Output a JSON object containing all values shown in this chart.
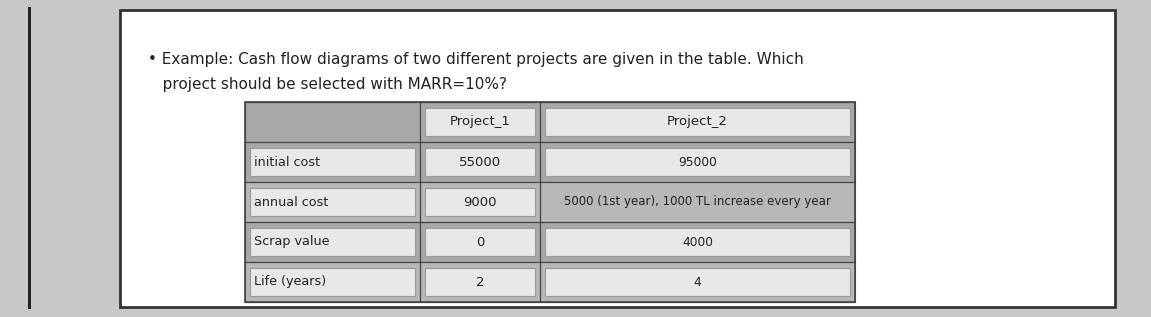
{
  "bg_color": "#c8c8c8",
  "outer_box_facecolor": "#ffffff",
  "outer_box_edgecolor": "#333333",
  "text_line1": "• Example: Cash flow diagrams of two different projects are given in the table. Which",
  "text_line2": "   project should be selected with MARR=10%?",
  "text_fontsize": 11.0,
  "col_headers": [
    "",
    "Project_1",
    "Project_2"
  ],
  "row_labels": [
    "initial cost",
    "annual cost",
    "Scrap value",
    "Life (years)"
  ],
  "project1_values": [
    "55000",
    "9000",
    "0",
    "2"
  ],
  "project2_values": [
    "95000",
    "5000 (1st year), 1000 TL increase every year",
    "4000",
    "4"
  ],
  "table_bg_dark": "#a8a8a8",
  "table_bg_medium": "#b8b8b8",
  "table_bg_light": "#c8c8c8",
  "inner_box_bg": "#e8e8e8",
  "inner_box_border": "#999999",
  "label_box_bg": "#e0e0e0",
  "table_border": "#666666",
  "row_colors": [
    "#a8a8a8",
    "#b8b8b8",
    "#a8a8a8",
    "#b8b8b8"
  ],
  "header_color": "#a8a8a8"
}
